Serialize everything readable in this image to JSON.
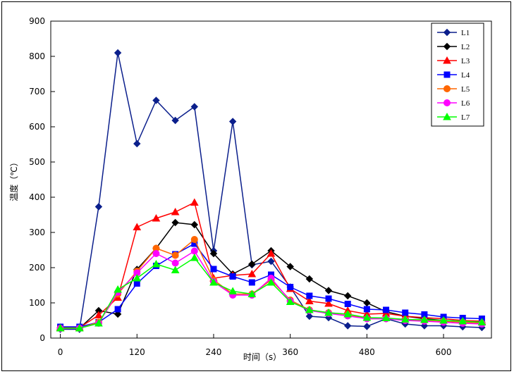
{
  "chart_data": {
    "type": "line",
    "xlabel": "时间（s）",
    "ylabel": "温度（℃）",
    "xlim": [
      -15,
      675
    ],
    "ylim": [
      0,
      900
    ],
    "xticks": [
      0,
      120,
      240,
      360,
      480,
      600
    ],
    "yticks": [
      0,
      100,
      200,
      300,
      400,
      500,
      600,
      700,
      800,
      900
    ],
    "grid": false,
    "legend_position": "top-right",
    "x": [
      0,
      30,
      60,
      90,
      120,
      150,
      180,
      210,
      240,
      270,
      300,
      330,
      360,
      390,
      420,
      450,
      480,
      510,
      540,
      570,
      600,
      630,
      660
    ],
    "series": [
      {
        "name": "L1",
        "color": "#0b1f8c",
        "marker": "diamond",
        "values": [
          25,
          25,
          373,
          810,
          552,
          675,
          618,
          657,
          248,
          615,
          208,
          218,
          145,
          62,
          58,
          35,
          33,
          55,
          40,
          35,
          35,
          32,
          30
        ]
      },
      {
        "name": "L2",
        "color": "#000000",
        "marker": "diamond",
        "values": [
          30,
          28,
          78,
          68,
          195,
          255,
          328,
          322,
          240,
          182,
          210,
          248,
          203,
          168,
          135,
          120,
          100,
          75,
          62,
          55,
          50,
          48,
          45
        ]
      },
      {
        "name": "L3",
        "color": "#ff0000",
        "marker": "triangle",
        "values": [
          30,
          30,
          65,
          115,
          315,
          340,
          358,
          385,
          170,
          178,
          182,
          240,
          140,
          105,
          98,
          78,
          68,
          70,
          62,
          58,
          55,
          50,
          48
        ]
      },
      {
        "name": "L4",
        "color": "#0000ff",
        "marker": "square",
        "values": [
          32,
          32,
          45,
          82,
          155,
          205,
          238,
          268,
          196,
          175,
          158,
          180,
          145,
          120,
          112,
          97,
          82,
          80,
          72,
          67,
          60,
          57,
          55
        ]
      },
      {
        "name": "L5",
        "color": "#ff6600",
        "marker": "circle",
        "values": [
          28,
          28,
          45,
          125,
          190,
          255,
          235,
          280,
          165,
          125,
          125,
          165,
          108,
          80,
          72,
          67,
          55,
          55,
          52,
          50,
          48,
          45,
          42
        ]
      },
      {
        "name": "L6",
        "color": "#ff00ff",
        "marker": "circle",
        "values": [
          27,
          28,
          42,
          130,
          185,
          240,
          213,
          247,
          160,
          122,
          122,
          170,
          105,
          78,
          70,
          63,
          55,
          55,
          50,
          48,
          45,
          42,
          40
        ]
      },
      {
        "name": "L7",
        "color": "#00ff00",
        "marker": "triangle",
        "values": [
          28,
          28,
          42,
          138,
          170,
          210,
          193,
          228,
          158,
          133,
          125,
          158,
          103,
          80,
          72,
          68,
          58,
          57,
          53,
          52,
          50,
          48,
          45
        ]
      }
    ]
  }
}
